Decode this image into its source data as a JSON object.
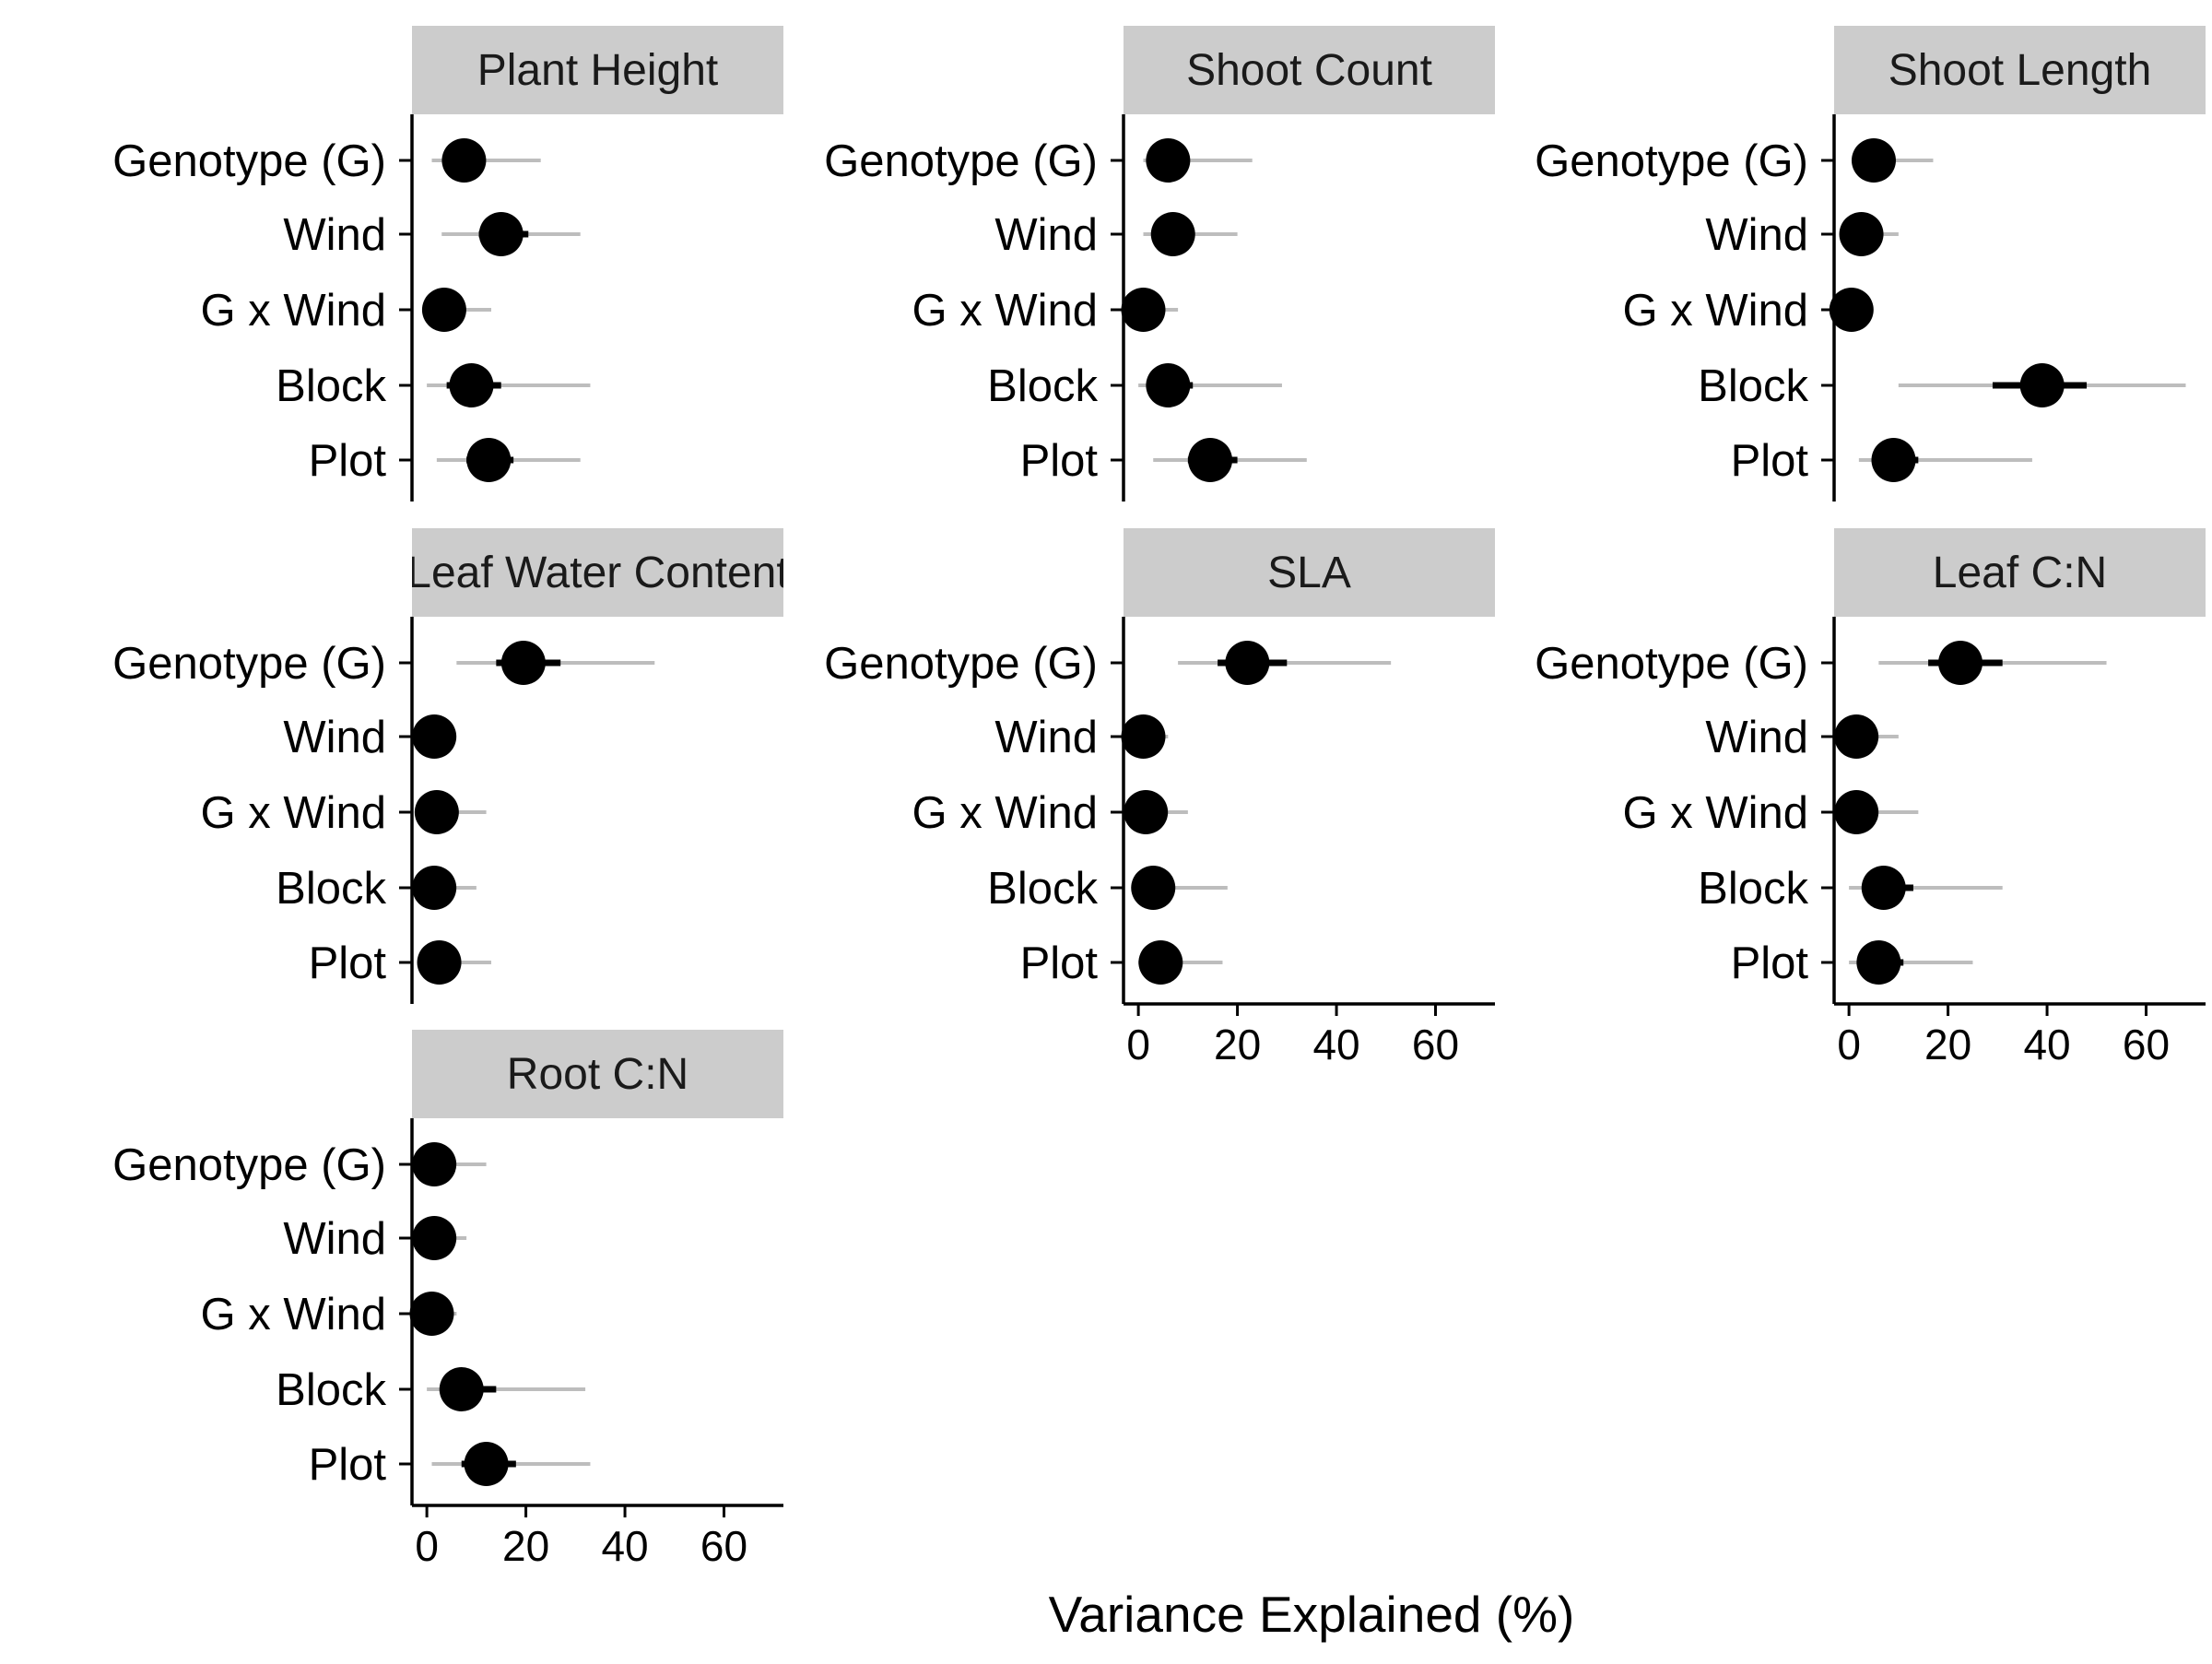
{
  "chart_data": {
    "type": "scatter",
    "xlabel": "Variance Explained (%)",
    "xlim": [
      -3,
      72
    ],
    "xticks": [
      0,
      20,
      40,
      60
    ],
    "xtick_labels": [
      "0",
      "20",
      "40",
      "60"
    ],
    "categories": [
      "Genotype (G)",
      "Wind",
      "G x Wind",
      "Block",
      "Plot"
    ],
    "grid": false,
    "panels": [
      {
        "title": "Plant Height",
        "estimates": [
          7.5,
          15,
          3.5,
          9,
          12.5
        ],
        "inner_interval": [
          [
            6,
            9.5
          ],
          [
            10.5,
            20.5
          ],
          [
            2,
            5
          ],
          [
            4,
            15
          ],
          [
            8,
            17.5
          ]
        ],
        "outer_interval": [
          [
            1,
            23
          ],
          [
            3,
            31
          ],
          [
            0,
            13
          ],
          [
            0,
            33
          ],
          [
            2,
            31
          ]
        ]
      },
      {
        "title": "Shoot Count",
        "estimates": [
          6,
          7,
          1,
          6,
          14.5
        ],
        "inner_interval": [
          [
            4,
            8
          ],
          [
            5,
            9
          ],
          [
            0,
            2
          ],
          [
            3,
            11
          ],
          [
            10,
            20
          ]
        ],
        "outer_interval": [
          [
            1,
            23
          ],
          [
            1,
            20
          ],
          [
            0,
            8
          ],
          [
            0,
            29
          ],
          [
            3,
            34
          ]
        ]
      },
      {
        "title": "Shoot Length",
        "estimates": [
          5,
          2.5,
          0.5,
          39,
          9
        ],
        "inner_interval": [
          [
            3,
            7
          ],
          [
            1,
            4
          ],
          [
            0,
            1.5
          ],
          [
            29,
            48
          ],
          [
            6,
            14
          ]
        ],
        "outer_interval": [
          [
            1,
            17
          ],
          [
            0,
            10
          ],
          [
            0,
            4
          ],
          [
            10,
            68
          ],
          [
            2,
            37
          ]
        ]
      },
      {
        "title": "Leaf Water Content",
        "estimates": [
          19.5,
          1.5,
          2,
          1.5,
          2.5
        ],
        "inner_interval": [
          [
            14,
            27
          ],
          [
            0.5,
            2.5
          ],
          [
            1,
            3
          ],
          [
            0.5,
            2.5
          ],
          [
            1,
            4
          ]
        ],
        "outer_interval": [
          [
            6,
            46
          ],
          [
            0,
            5
          ],
          [
            0,
            12
          ],
          [
            0,
            10
          ],
          [
            0,
            13
          ]
        ]
      },
      {
        "title": "SLA",
        "estimates": [
          22,
          1,
          1.5,
          3,
          4.5
        ],
        "inner_interval": [
          [
            16,
            30
          ],
          [
            0,
            2
          ],
          [
            0.5,
            3
          ],
          [
            1,
            5
          ],
          [
            2,
            7
          ]
        ],
        "outer_interval": [
          [
            8,
            51
          ],
          [
            0,
            6
          ],
          [
            0,
            10
          ],
          [
            0,
            18
          ],
          [
            0,
            17
          ]
        ]
      },
      {
        "title": "Leaf C:N",
        "estimates": [
          22.5,
          1.5,
          1.5,
          7,
          6
        ],
        "inner_interval": [
          [
            16,
            31
          ],
          [
            0.5,
            3
          ],
          [
            0.5,
            3
          ],
          [
            3,
            13
          ],
          [
            3,
            11
          ]
        ],
        "outer_interval": [
          [
            6,
            52
          ],
          [
            0,
            10
          ],
          [
            0,
            14
          ],
          [
            0,
            31
          ],
          [
            0,
            25
          ]
        ]
      },
      {
        "title": "Root C:N",
        "estimates": [
          1.5,
          1.5,
          1,
          7,
          12
        ],
        "inner_interval": [
          [
            0.5,
            3
          ],
          [
            0.5,
            3
          ],
          [
            0,
            2
          ],
          [
            3,
            14
          ],
          [
            7,
            18
          ]
        ],
        "outer_interval": [
          [
            0,
            12
          ],
          [
            0,
            8
          ],
          [
            0,
            6
          ],
          [
            0,
            32
          ],
          [
            1,
            33
          ]
        ]
      }
    ]
  }
}
